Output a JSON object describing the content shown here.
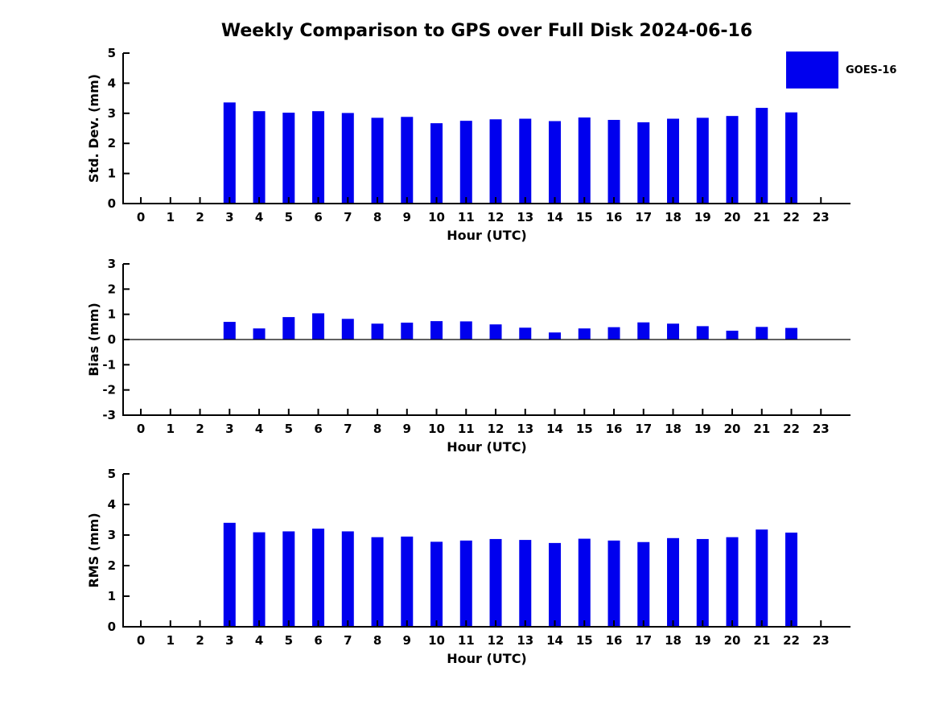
{
  "title": "Weekly Comparison to GPS over Full Disk 2024-06-16",
  "legend": {
    "label": "GOES-16",
    "swatch_color": "#0000ee"
  },
  "chart_data": [
    {
      "type": "bar",
      "name": "std-dev",
      "title": "",
      "ylabel": "Std. Dev. (mm)",
      "xlabel": "Hour (UTC)",
      "series_name": "GOES-16",
      "bar_color": "#0000ee",
      "ylim": [
        0,
        5
      ],
      "yticks": [
        0,
        1,
        2,
        3,
        4,
        5
      ],
      "xticks": [
        0,
        1,
        2,
        3,
        4,
        5,
        6,
        7,
        8,
        9,
        10,
        11,
        12,
        13,
        14,
        15,
        16,
        17,
        18,
        19,
        20,
        21,
        22,
        23
      ],
      "xlim": [
        -0.6,
        24.0
      ],
      "zero_line": false,
      "grid": false,
      "x": [
        3,
        4,
        5,
        6,
        7,
        8,
        9,
        10,
        11,
        12,
        13,
        14,
        15,
        16,
        17,
        18,
        19,
        20,
        21,
        22
      ],
      "values": [
        3.36,
        3.07,
        3.02,
        3.07,
        3.01,
        2.85,
        2.88,
        2.67,
        2.75,
        2.8,
        2.82,
        2.74,
        2.86,
        2.78,
        2.7,
        2.82,
        2.85,
        2.91,
        3.18,
        3.03
      ]
    },
    {
      "type": "bar",
      "name": "bias",
      "title": "",
      "ylabel": "Bias (mm)",
      "xlabel": "Hour (UTC)",
      "series_name": "GOES-16",
      "bar_color": "#0000ee",
      "ylim": [
        -3,
        3
      ],
      "yticks": [
        -3,
        -2,
        -1,
        0,
        1,
        2,
        3
      ],
      "xticks": [
        0,
        1,
        2,
        3,
        4,
        5,
        6,
        7,
        8,
        9,
        10,
        11,
        12,
        13,
        14,
        15,
        16,
        17,
        18,
        19,
        20,
        21,
        22,
        23
      ],
      "xlim": [
        -0.6,
        24.0
      ],
      "zero_line": true,
      "grid": false,
      "x": [
        3,
        4,
        5,
        6,
        7,
        8,
        9,
        10,
        11,
        12,
        13,
        14,
        15,
        16,
        17,
        18,
        19,
        20,
        21,
        22
      ],
      "values": [
        0.7,
        0.44,
        0.89,
        1.04,
        0.82,
        0.63,
        0.67,
        0.73,
        0.72,
        0.6,
        0.47,
        0.28,
        0.44,
        0.49,
        0.68,
        0.63,
        0.53,
        0.35,
        0.5,
        0.46
      ]
    },
    {
      "type": "bar",
      "name": "rms",
      "title": "",
      "ylabel": "RMS (mm)",
      "xlabel": "Hour (UTC)",
      "series_name": "GOES-16",
      "bar_color": "#0000ee",
      "ylim": [
        0,
        5
      ],
      "yticks": [
        0,
        1,
        2,
        3,
        4,
        5
      ],
      "xticks": [
        0,
        1,
        2,
        3,
        4,
        5,
        6,
        7,
        8,
        9,
        10,
        11,
        12,
        13,
        14,
        15,
        16,
        17,
        18,
        19,
        20,
        21,
        22,
        23
      ],
      "xlim": [
        -0.6,
        24.0
      ],
      "zero_line": false,
      "grid": false,
      "x": [
        3,
        4,
        5,
        6,
        7,
        8,
        9,
        10,
        11,
        12,
        13,
        14,
        15,
        16,
        17,
        18,
        19,
        20,
        21,
        22
      ],
      "values": [
        3.4,
        3.09,
        3.12,
        3.21,
        3.12,
        2.93,
        2.95,
        2.78,
        2.82,
        2.87,
        2.84,
        2.74,
        2.88,
        2.82,
        2.77,
        2.9,
        2.87,
        2.93,
        3.18,
        3.08
      ]
    }
  ]
}
